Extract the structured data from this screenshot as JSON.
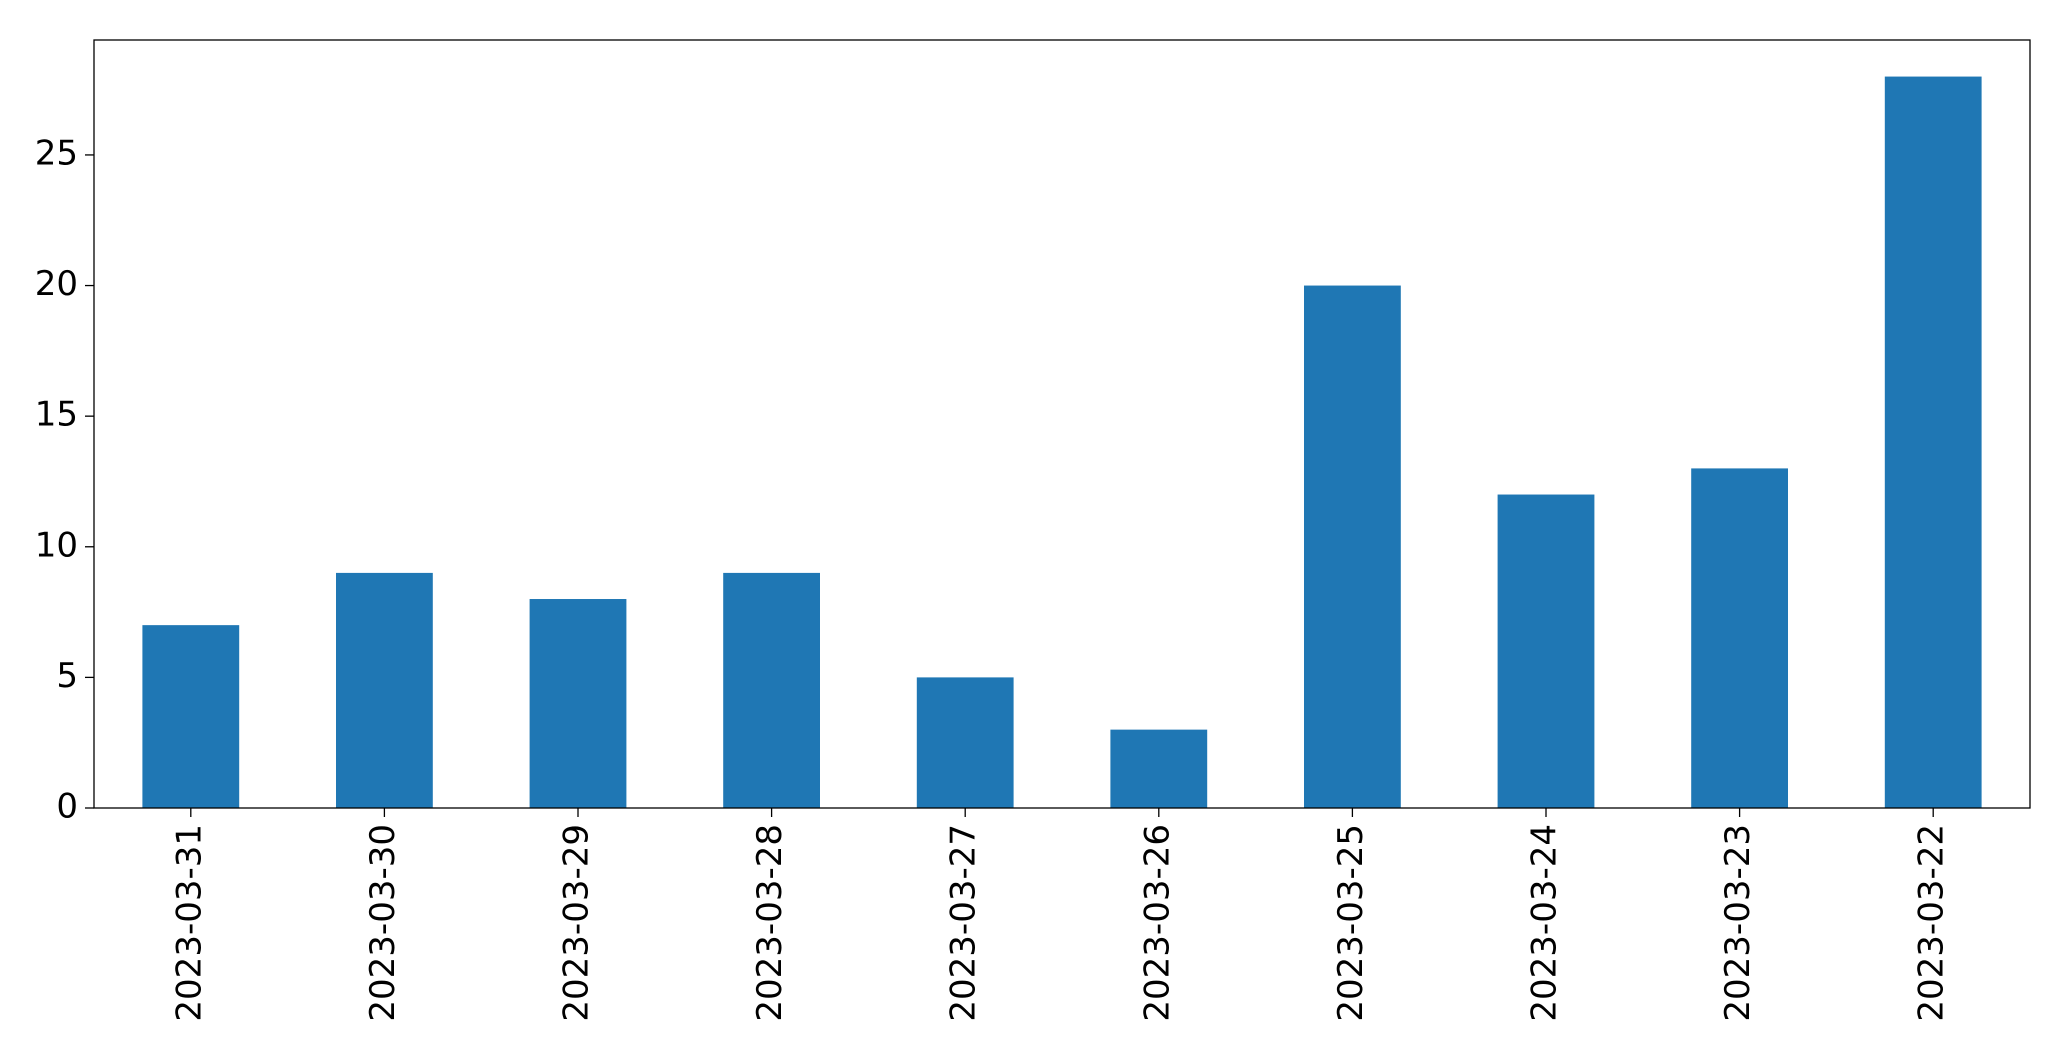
{
  "chart_data": {
    "type": "bar",
    "categories": [
      "2023-03-31",
      "2023-03-30",
      "2023-03-29",
      "2023-03-28",
      "2023-03-27",
      "2023-03-26",
      "2023-03-25",
      "2023-03-24",
      "2023-03-23",
      "2023-03-22"
    ],
    "values": [
      7,
      9,
      8,
      9,
      5,
      3,
      20,
      12,
      13,
      28
    ],
    "color": "#1f77b4",
    "ylim": [
      0,
      29.4
    ],
    "yticks": [
      0,
      5,
      10,
      15,
      20,
      25
    ],
    "grid": false
  }
}
